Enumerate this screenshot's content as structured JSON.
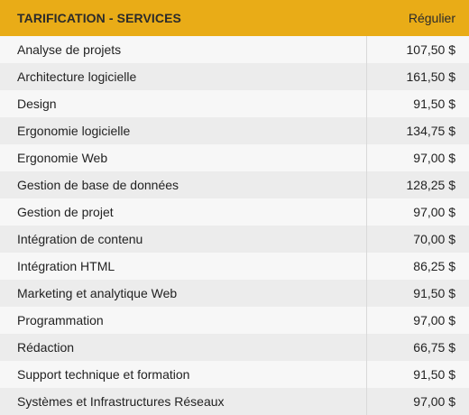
{
  "colors": {
    "header_background": "#e9ac17",
    "row_light": "#f7f7f7",
    "row_dark": "#ececec",
    "text": "#222222"
  },
  "table": {
    "header": {
      "service": "TARIFICATION - SERVICES",
      "price": "Régulier"
    },
    "rows": [
      {
        "service": "Analyse de projets",
        "price": "107,50 $"
      },
      {
        "service": "Architecture logicielle",
        "price": "161,50 $"
      },
      {
        "service": "Design",
        "price": "91,50 $"
      },
      {
        "service": "Ergonomie logicielle",
        "price": "134,75 $"
      },
      {
        "service": "Ergonomie Web",
        "price": "97,00 $"
      },
      {
        "service": "Gestion de base de données",
        "price": "128,25 $"
      },
      {
        "service": "Gestion de projet",
        "price": "97,00 $"
      },
      {
        "service": "Intégration de contenu",
        "price": "70,00 $"
      },
      {
        "service": "Intégration HTML",
        "price": "86,25 $"
      },
      {
        "service": "Marketing et analytique Web",
        "price": "91,50 $"
      },
      {
        "service": "Programmation",
        "price": "97,00 $"
      },
      {
        "service": "Rédaction",
        "price": "66,75 $"
      },
      {
        "service": "Support technique et formation",
        "price": "91,50 $"
      },
      {
        "service": "Systèmes et Infrastructures Réseaux",
        "price": "97,00 $"
      }
    ]
  }
}
